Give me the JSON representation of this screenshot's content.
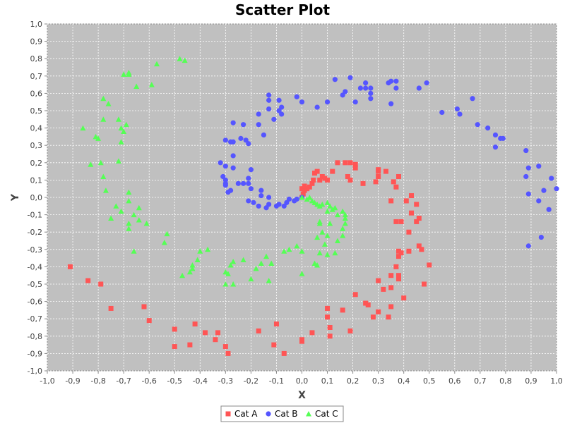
{
  "chart_data": {
    "type": "scatter",
    "title": "Scatter Plot",
    "xlabel": "X",
    "ylabel": "Y",
    "xlim": [
      -1.0,
      1.0
    ],
    "ylim": [
      -1.0,
      1.0
    ],
    "tick_step": 0.1,
    "decimal_separator": ",",
    "grid": true,
    "legend_position": "bottom",
    "plot_background": "#c0c0c0",
    "series": [
      {
        "name": "Cat A",
        "marker": "square",
        "color": "#ff5555",
        "points": [
          [
            0.0,
            0.0
          ],
          [
            0.005,
            0.02
          ],
          [
            0.01,
            0.04
          ],
          [
            0.02,
            0.05
          ],
          [
            0.03,
            0.06
          ],
          [
            0.0,
            0.05
          ],
          [
            0.01,
            0.065
          ],
          [
            0.04,
            0.08
          ],
          [
            0.045,
            0.1
          ],
          [
            0.05,
            0.14
          ],
          [
            0.06,
            0.15
          ],
          [
            0.07,
            0.1
          ],
          [
            0.08,
            0.12
          ],
          [
            0.09,
            0.11
          ],
          [
            0.1,
            0.1
          ],
          [
            0.12,
            0.15
          ],
          [
            0.14,
            0.2
          ],
          [
            0.17,
            0.2
          ],
          [
            0.19,
            0.2
          ],
          [
            0.21,
            0.19
          ],
          [
            0.21,
            0.17
          ],
          [
            0.18,
            0.12
          ],
          [
            0.19,
            0.1
          ],
          [
            0.24,
            0.08
          ],
          [
            0.29,
            0.09
          ],
          [
            0.3,
            0.12
          ],
          [
            0.3,
            0.15
          ],
          [
            0.33,
            0.15
          ],
          [
            0.3,
            0.16
          ],
          [
            0.38,
            0.12
          ],
          [
            0.36,
            0.09
          ],
          [
            0.37,
            0.06
          ],
          [
            0.43,
            0.01
          ],
          [
            0.41,
            -0.02
          ],
          [
            0.35,
            -0.02
          ],
          [
            0.45,
            -0.04
          ],
          [
            0.43,
            -0.09
          ],
          [
            0.37,
            -0.14
          ],
          [
            0.39,
            -0.14
          ],
          [
            0.46,
            -0.12
          ],
          [
            0.45,
            -0.14
          ],
          [
            0.42,
            -0.2
          ],
          [
            0.38,
            -0.31
          ],
          [
            0.39,
            -0.32
          ],
          [
            0.42,
            -0.31
          ],
          [
            0.46,
            -0.28
          ],
          [
            0.47,
            -0.3
          ],
          [
            0.38,
            -0.34
          ],
          [
            0.37,
            -0.4
          ],
          [
            0.35,
            -0.45
          ],
          [
            0.38,
            -0.45
          ],
          [
            0.38,
            -0.47
          ],
          [
            0.5,
            -0.39
          ],
          [
            0.48,
            -0.5
          ],
          [
            0.3,
            -0.48
          ],
          [
            0.32,
            -0.53
          ],
          [
            0.35,
            -0.52
          ],
          [
            0.4,
            -0.58
          ],
          [
            0.21,
            -0.56
          ],
          [
            0.25,
            -0.61
          ],
          [
            0.26,
            -0.62
          ],
          [
            0.16,
            -0.65
          ],
          [
            0.1,
            -0.64
          ],
          [
            0.3,
            -0.66
          ],
          [
            0.28,
            -0.69
          ],
          [
            0.34,
            -0.69
          ],
          [
            0.35,
            -0.63
          ],
          [
            0.1,
            -0.69
          ],
          [
            0.11,
            -0.75
          ],
          [
            0.19,
            -0.77
          ],
          [
            0.11,
            -0.8
          ],
          [
            0.04,
            -0.78
          ],
          [
            0.0,
            -0.82
          ],
          [
            0.0,
            -0.83
          ],
          [
            -0.07,
            -0.9
          ],
          [
            -0.11,
            -0.85
          ],
          [
            -0.1,
            -0.73
          ],
          [
            -0.17,
            -0.77
          ],
          [
            -0.29,
            -0.9
          ],
          [
            -0.3,
            -0.86
          ],
          [
            -0.33,
            -0.78
          ],
          [
            -0.34,
            -0.82
          ],
          [
            -0.38,
            -0.78
          ],
          [
            -0.42,
            -0.73
          ],
          [
            -0.44,
            -0.85
          ],
          [
            -0.5,
            -0.86
          ],
          [
            -0.5,
            -0.76
          ],
          [
            -0.6,
            -0.71
          ],
          [
            -0.62,
            -0.63
          ],
          [
            -0.75,
            -0.64
          ],
          [
            -0.79,
            -0.5
          ],
          [
            -0.84,
            -0.48
          ],
          [
            -0.91,
            -0.4
          ]
        ]
      },
      {
        "name": "Cat B",
        "marker": "circle",
        "color": "#5555ff",
        "points": [
          [
            0.0,
            0.0
          ],
          [
            -0.02,
            -0.01
          ],
          [
            -0.03,
            -0.02
          ],
          [
            -0.05,
            -0.01
          ],
          [
            -0.06,
            -0.03
          ],
          [
            -0.07,
            -0.05
          ],
          [
            -0.09,
            -0.04
          ],
          [
            -0.1,
            -0.05
          ],
          [
            -0.13,
            -0.04
          ],
          [
            -0.14,
            -0.06
          ],
          [
            -0.13,
            0.0
          ],
          [
            -0.17,
            -0.05
          ],
          [
            -0.19,
            -0.03
          ],
          [
            -0.21,
            -0.02
          ],
          [
            -0.16,
            0.01
          ],
          [
            -0.16,
            0.04
          ],
          [
            -0.2,
            0.05
          ],
          [
            -0.21,
            0.08
          ],
          [
            -0.21,
            0.11
          ],
          [
            -0.2,
            0.16
          ],
          [
            -0.23,
            0.08
          ],
          [
            -0.25,
            0.08
          ],
          [
            -0.27,
            0.17
          ],
          [
            -0.3,
            0.08
          ],
          [
            -0.28,
            0.04
          ],
          [
            -0.29,
            0.03
          ],
          [
            -0.3,
            0.07
          ],
          [
            -0.3,
            0.1
          ],
          [
            -0.31,
            0.12
          ],
          [
            -0.3,
            0.18
          ],
          [
            -0.32,
            0.2
          ],
          [
            -0.27,
            0.32
          ],
          [
            -0.3,
            0.33
          ],
          [
            -0.28,
            0.32
          ],
          [
            -0.22,
            0.33
          ],
          [
            -0.21,
            0.31
          ],
          [
            -0.27,
            0.24
          ],
          [
            -0.24,
            0.34
          ],
          [
            -0.27,
            0.43
          ],
          [
            -0.23,
            0.42
          ],
          [
            -0.15,
            0.36
          ],
          [
            -0.17,
            0.42
          ],
          [
            -0.17,
            0.48
          ],
          [
            -0.13,
            0.51
          ],
          [
            -0.08,
            0.48
          ],
          [
            -0.09,
            0.5
          ],
          [
            -0.08,
            0.52
          ],
          [
            -0.11,
            0.45
          ],
          [
            -0.09,
            0.56
          ],
          [
            -0.13,
            0.59
          ],
          [
            -0.13,
            0.56
          ],
          [
            -0.02,
            0.58
          ],
          [
            0.0,
            0.55
          ],
          [
            0.06,
            0.52
          ],
          [
            0.1,
            0.55
          ],
          [
            0.13,
            0.68
          ],
          [
            0.16,
            0.59
          ],
          [
            0.17,
            0.61
          ],
          [
            0.19,
            0.69
          ],
          [
            0.21,
            0.55
          ],
          [
            0.23,
            0.63
          ],
          [
            0.25,
            0.63
          ],
          [
            0.25,
            0.66
          ],
          [
            0.27,
            0.63
          ],
          [
            0.27,
            0.6
          ],
          [
            0.27,
            0.57
          ],
          [
            0.34,
            0.66
          ],
          [
            0.35,
            0.67
          ],
          [
            0.37,
            0.67
          ],
          [
            0.37,
            0.63
          ],
          [
            0.35,
            0.54
          ],
          [
            0.46,
            0.63
          ],
          [
            0.49,
            0.66
          ],
          [
            0.55,
            0.49
          ],
          [
            0.61,
            0.51
          ],
          [
            0.62,
            0.48
          ],
          [
            0.67,
            0.57
          ],
          [
            0.69,
            0.42
          ],
          [
            0.73,
            0.4
          ],
          [
            0.76,
            0.36
          ],
          [
            0.78,
            0.34
          ],
          [
            0.79,
            0.34
          ],
          [
            0.76,
            0.29
          ],
          [
            0.88,
            0.27
          ],
          [
            0.89,
            0.17
          ],
          [
            0.88,
            0.12
          ],
          [
            0.93,
            0.18
          ],
          [
            0.98,
            0.11
          ],
          [
            1.0,
            0.05
          ],
          [
            0.95,
            0.04
          ],
          [
            0.89,
            0.02
          ],
          [
            0.93,
            -0.02
          ],
          [
            0.97,
            -0.07
          ],
          [
            0.94,
            -0.23
          ],
          [
            0.89,
            -0.28
          ]
        ]
      },
      {
        "name": "Cat C",
        "marker": "triangle",
        "color": "#55ff55",
        "points": [
          [
            0.0,
            0.0
          ],
          [
            0.02,
            -0.01
          ],
          [
            0.03,
            0.0
          ],
          [
            0.04,
            -0.02
          ],
          [
            0.05,
            -0.03
          ],
          [
            0.06,
            -0.04
          ],
          [
            0.07,
            -0.05
          ],
          [
            0.08,
            -0.04
          ],
          [
            0.1,
            -0.03
          ],
          [
            0.11,
            -0.05
          ],
          [
            0.12,
            -0.07
          ],
          [
            0.1,
            -0.08
          ],
          [
            0.13,
            -0.06
          ],
          [
            0.14,
            -0.1
          ],
          [
            0.16,
            -0.08
          ],
          [
            0.17,
            -0.1
          ],
          [
            0.17,
            -0.12
          ],
          [
            0.17,
            -0.15
          ],
          [
            0.16,
            -0.18
          ],
          [
            0.16,
            -0.22
          ],
          [
            0.14,
            -0.25
          ],
          [
            0.13,
            -0.32
          ],
          [
            0.11,
            -0.15
          ],
          [
            0.1,
            -0.22
          ],
          [
            0.09,
            -0.27
          ],
          [
            0.1,
            -0.33
          ],
          [
            0.07,
            -0.14
          ],
          [
            0.07,
            -0.15
          ],
          [
            0.08,
            -0.2
          ],
          [
            0.06,
            -0.23
          ],
          [
            0.07,
            -0.32
          ],
          [
            0.05,
            -0.38
          ],
          [
            0.06,
            -0.39
          ],
          [
            0.0,
            -0.31
          ],
          [
            -0.02,
            -0.28
          ],
          [
            -0.05,
            -0.3
          ],
          [
            -0.07,
            -0.31
          ],
          [
            0.0,
            -0.44
          ],
          [
            -0.12,
            -0.38
          ],
          [
            -0.13,
            -0.48
          ],
          [
            -0.16,
            -0.38
          ],
          [
            -0.14,
            -0.34
          ],
          [
            -0.18,
            -0.41
          ],
          [
            -0.2,
            -0.47
          ],
          [
            -0.23,
            -0.36
          ],
          [
            -0.27,
            -0.37
          ],
          [
            -0.28,
            -0.39
          ],
          [
            -0.27,
            -0.5
          ],
          [
            -0.3,
            -0.43
          ],
          [
            -0.29,
            -0.44
          ],
          [
            -0.3,
            -0.5
          ],
          [
            -0.37,
            -0.3
          ],
          [
            -0.4,
            -0.31
          ],
          [
            -0.41,
            -0.36
          ],
          [
            -0.43,
            -0.39
          ],
          [
            -0.44,
            -0.43
          ],
          [
            -0.43,
            -0.41
          ],
          [
            -0.47,
            -0.45
          ],
          [
            -0.53,
            -0.21
          ],
          [
            -0.54,
            -0.26
          ],
          [
            -0.61,
            -0.15
          ],
          [
            -0.64,
            -0.13
          ],
          [
            -0.64,
            -0.06
          ],
          [
            -0.66,
            -0.1
          ],
          [
            -0.66,
            -0.31
          ],
          [
            -0.68,
            -0.18
          ],
          [
            -0.68,
            -0.15
          ],
          [
            -0.68,
            -0.02
          ],
          [
            -0.68,
            0.03
          ],
          [
            -0.71,
            -0.08
          ],
          [
            -0.73,
            -0.05
          ],
          [
            -0.75,
            -0.12
          ],
          [
            -0.77,
            0.04
          ],
          [
            -0.78,
            0.12
          ],
          [
            -0.79,
            0.2
          ],
          [
            -0.83,
            0.19
          ],
          [
            -0.8,
            0.34
          ],
          [
            -0.81,
            0.35
          ],
          [
            -0.86,
            0.4
          ],
          [
            -0.72,
            0.21
          ],
          [
            -0.71,
            0.32
          ],
          [
            -0.7,
            0.38
          ],
          [
            -0.71,
            0.4
          ],
          [
            -0.69,
            0.42
          ],
          [
            -0.72,
            0.45
          ],
          [
            -0.78,
            0.45
          ],
          [
            -0.76,
            0.54
          ],
          [
            -0.78,
            0.57
          ],
          [
            -0.65,
            0.64
          ],
          [
            -0.7,
            0.71
          ],
          [
            -0.68,
            0.71
          ],
          [
            -0.68,
            0.72
          ],
          [
            -0.59,
            0.65
          ],
          [
            -0.57,
            0.77
          ],
          [
            -0.48,
            0.8
          ],
          [
            -0.46,
            0.79
          ]
        ]
      }
    ]
  }
}
